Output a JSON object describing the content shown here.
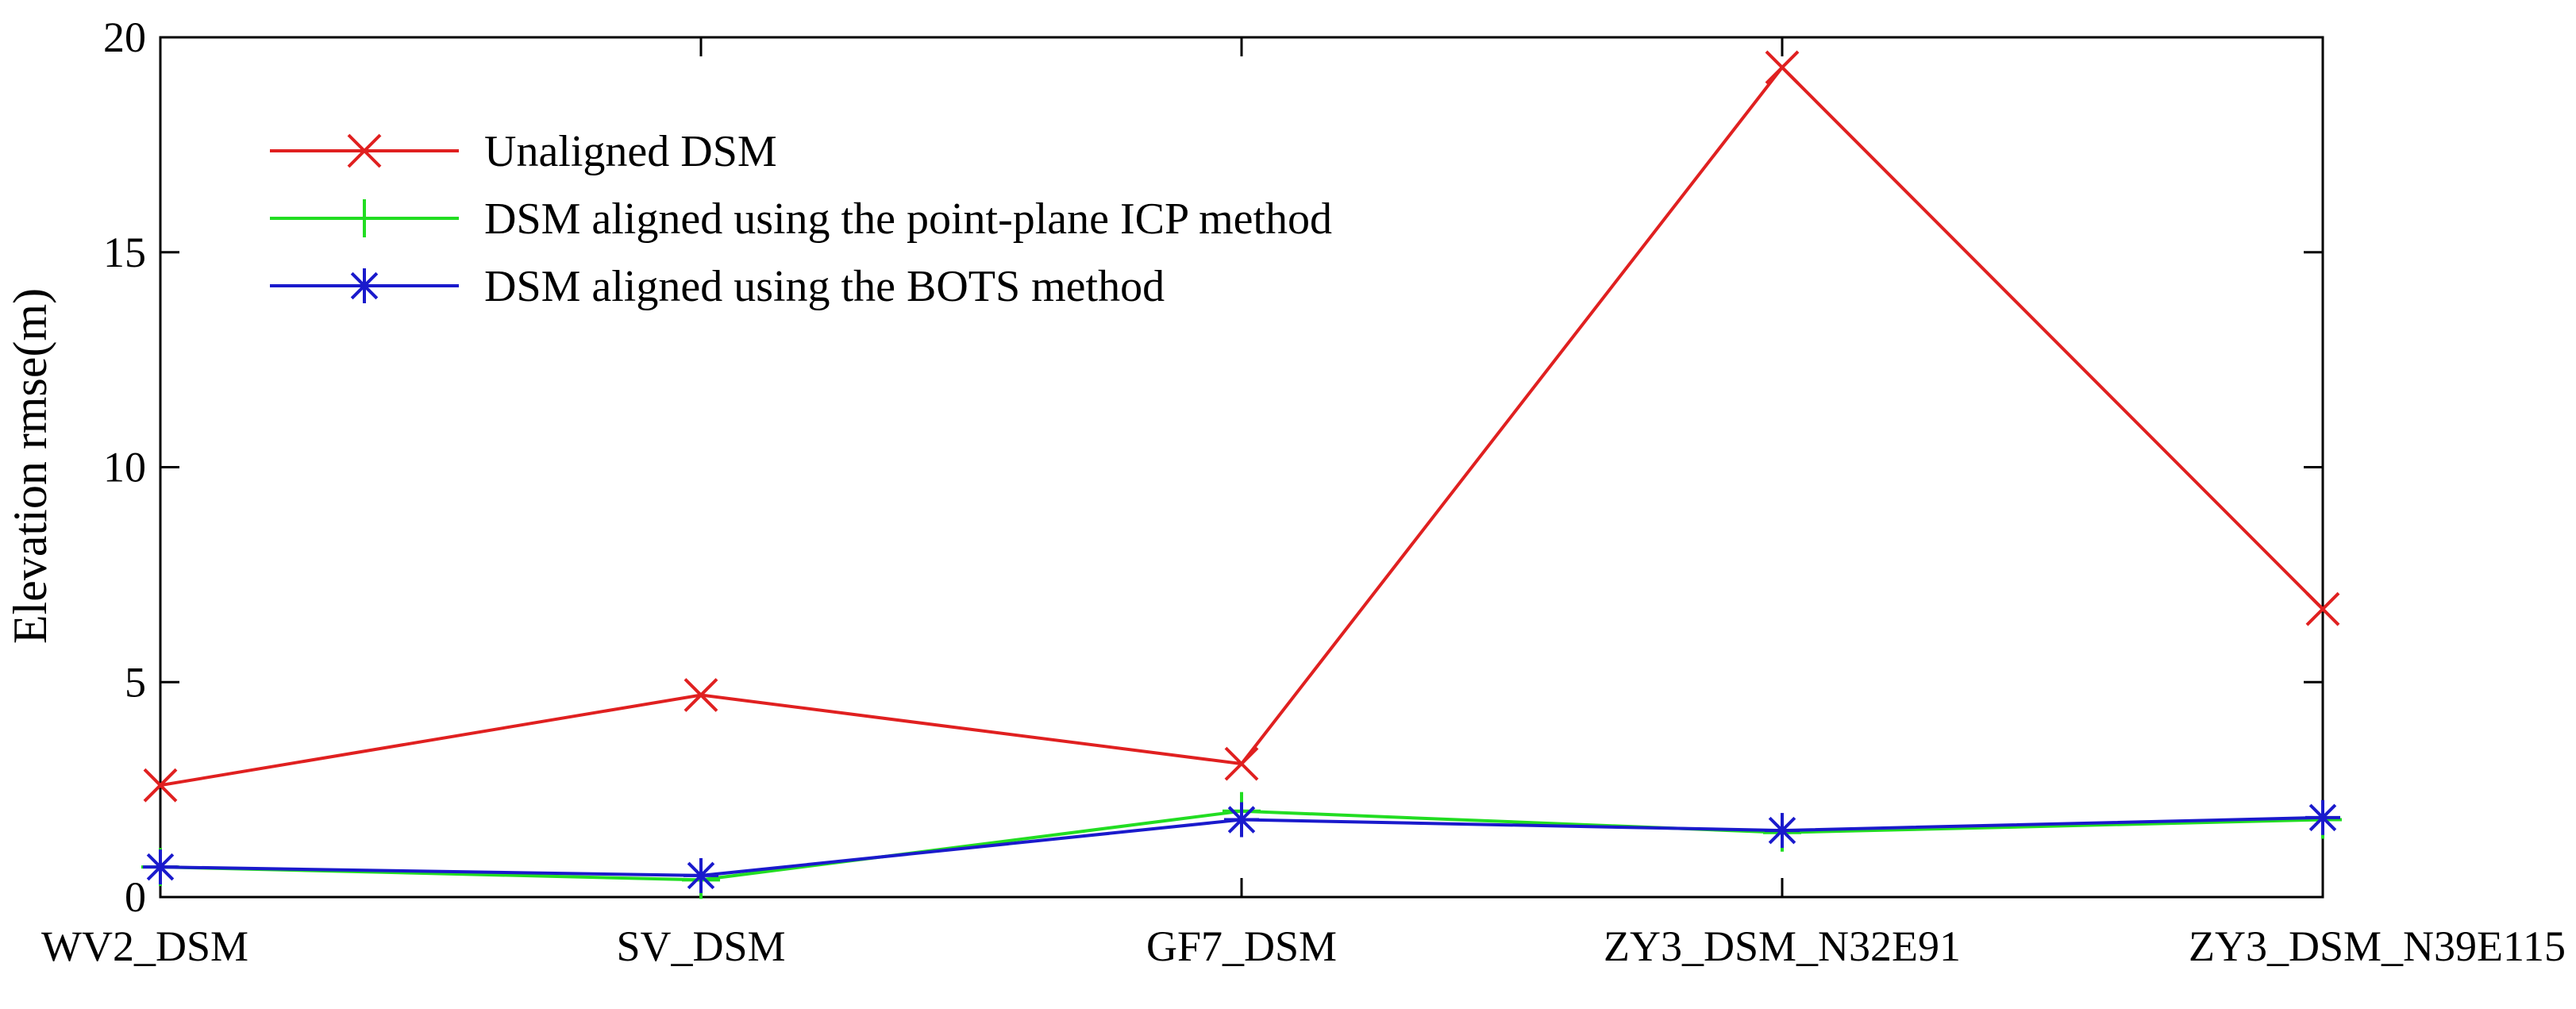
{
  "chart_data": {
    "type": "line",
    "title": "",
    "xlabel": "",
    "ylabel": "Elevation rmse(m)",
    "categories": [
      "WV2_DSM",
      "SV_DSM",
      "GF7_DSM",
      "ZY3_DSM_N32E91",
      "ZY3_DSM_N39E115"
    ],
    "ylim": [
      0,
      20
    ],
    "yticks": [
      0,
      5,
      10,
      15,
      20
    ],
    "grid": false,
    "legend_position": "top-left",
    "series": [
      {
        "name": "Unaligned DSM",
        "color": "#e02020",
        "marker": "x",
        "values": [
          2.6,
          4.7,
          3.1,
          19.3,
          6.7
        ]
      },
      {
        "name": "DSM aligned using the point-plane ICP method",
        "color": "#22dd22",
        "marker": "+",
        "values": [
          0.7,
          0.4,
          2.0,
          1.5,
          1.8
        ]
      },
      {
        "name": "DSM aligned using the BOTS method",
        "color": "#1a1acc",
        "marker": "asterisk",
        "values": [
          0.7,
          0.5,
          1.8,
          1.55,
          1.85
        ]
      }
    ]
  }
}
